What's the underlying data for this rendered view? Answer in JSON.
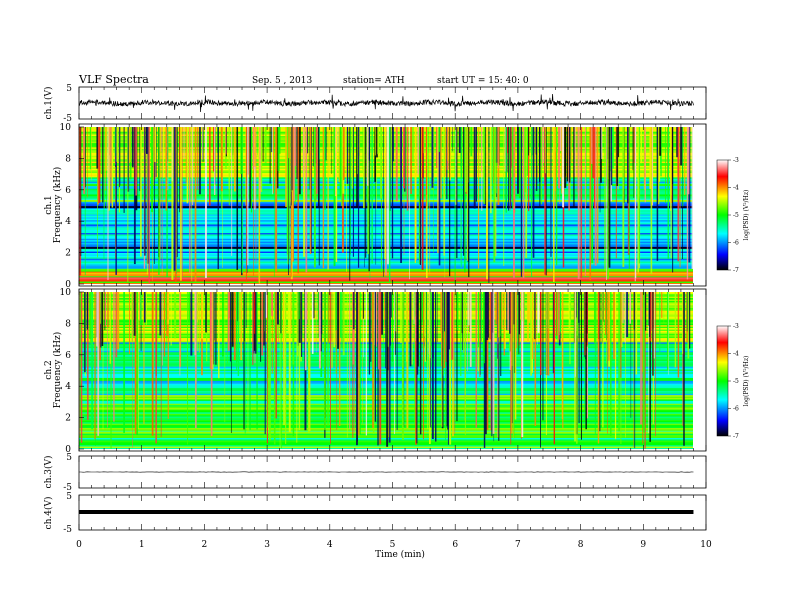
{
  "header": {
    "title": "VLF  Spectra",
    "date": "Sep. 5  , 2013",
    "station": "station= ATH",
    "start": "start  UT  =    15: 40: 0"
  },
  "chart_data": [
    {
      "type": "line",
      "name": "ch1-waveform",
      "ylabel": "ch.1(V)",
      "yticks": [
        "5",
        "-5"
      ],
      "ylim": [
        -5,
        5
      ],
      "xlim": [
        0,
        10
      ],
      "data_end_min": 9.8,
      "trace": "noisy broadband signal around 0 V, amplitude about 1 V with spikes to about 2.5 V",
      "color": "#000000"
    },
    {
      "type": "heatmap",
      "name": "ch1-spectrogram",
      "ylabel_top": "ch.1",
      "ylabel": "Frequency  (kHz)",
      "yticks": [
        "0",
        "2",
        "4",
        "6",
        "8",
        "10"
      ],
      "ylim": [
        0,
        10
      ],
      "xlim": [
        0,
        10
      ],
      "data_end_min": 9.8,
      "colorbar": {
        "label": "log(PSD) (V²/Hz)",
        "ticks": [
          "-3",
          "-4",
          "-5",
          "-6",
          "-7"
        ],
        "range": [
          -7,
          -3
        ],
        "colors": [
          "#000000",
          "#0000ff",
          "#00ffff",
          "#00ff00",
          "#ffff00",
          "#ff0000",
          "#ffffff"
        ]
      }
    },
    {
      "type": "heatmap",
      "name": "ch2-spectrogram",
      "ylabel_top": "ch.2",
      "ylabel": "Frequency  (kHz)",
      "yticks": [
        "0",
        "2",
        "4",
        "6",
        "8",
        "10"
      ],
      "ylim": [
        0,
        10
      ],
      "xlim": [
        0,
        10
      ],
      "data_end_min": 9.8,
      "colorbar": {
        "label": "log(PSD) (V²/Hz)",
        "ticks": [
          "-3",
          "-4",
          "-5",
          "-6",
          "-7"
        ],
        "range": [
          -7,
          -3
        ],
        "colors": [
          "#000000",
          "#0000ff",
          "#00ffff",
          "#00ff00",
          "#ffff00",
          "#ff0000",
          "#ffffff"
        ]
      }
    },
    {
      "type": "line",
      "name": "ch3-waveform",
      "ylabel": "ch.3(V)",
      "yticks": [
        "5",
        "-5"
      ],
      "ylim": [
        -5,
        5
      ],
      "xlim": [
        0,
        10
      ],
      "data_end_min": 9.8,
      "trace": "flat near 0 V",
      "color": "#000000"
    },
    {
      "type": "line",
      "name": "ch4-waveform",
      "ylabel": "ch.4(V)",
      "yticks": [
        "5",
        "-5"
      ],
      "ylim": [
        -5,
        5
      ],
      "xlim": [
        0,
        10
      ],
      "data_end_min": 9.8,
      "trace": "thick flat trace near 0 V",
      "color": "#000000"
    }
  ],
  "xaxis": {
    "label": "Time  (min)",
    "ticks": [
      "0",
      "1",
      "2",
      "3",
      "4",
      "5",
      "6",
      "7",
      "8",
      "9",
      "10"
    ],
    "range": [
      0,
      10
    ]
  }
}
